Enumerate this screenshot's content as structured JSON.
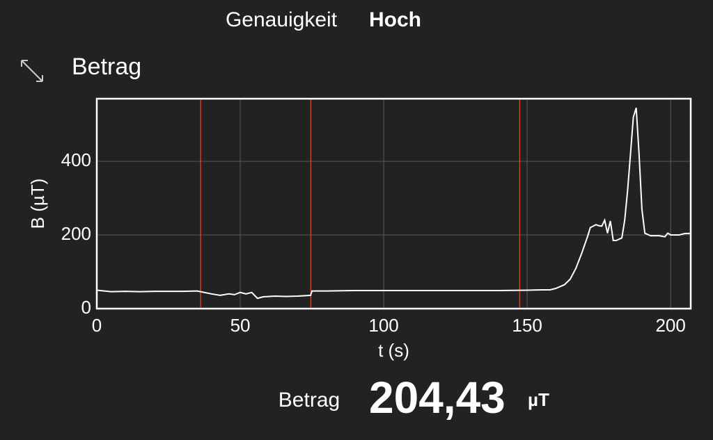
{
  "header": {
    "accuracy_label": "Genauigkeit",
    "accuracy_value": "Hoch"
  },
  "graph_title": "Betrag",
  "chart_data": {
    "type": "line",
    "xlabel": "t (s)",
    "ylabel": "B (µT)",
    "xlim": [
      0,
      207
    ],
    "ylim": [
      0,
      570
    ],
    "xticks": [
      0,
      50,
      100,
      150,
      200
    ],
    "yticks": [
      0,
      200,
      400
    ],
    "grid": true,
    "markers": [
      36.2,
      74.6,
      147.4
    ],
    "marker_color": "#c0442c",
    "series": [
      {
        "color": "#ffffff",
        "x": [
          0,
          5,
          10,
          15,
          20,
          25,
          30,
          35,
          40,
          43,
          46,
          48,
          50,
          52,
          54,
          56,
          58,
          62,
          66,
          70,
          74.5,
          75,
          80,
          90,
          100,
          110,
          120,
          130,
          140,
          150,
          155,
          158,
          160,
          163,
          165,
          167,
          169,
          171,
          172,
          174,
          175,
          176,
          177,
          178,
          179,
          180,
          181,
          183,
          184,
          185,
          186,
          187,
          188,
          189,
          190,
          191,
          193,
          196,
          198,
          199,
          200,
          203,
          205,
          207
        ],
        "values": [
          50,
          46,
          47,
          46,
          47,
          47,
          47,
          48,
          40,
          36,
          40,
          38,
          44,
          40,
          44,
          28,
          32,
          34,
          33,
          34,
          36,
          48,
          48,
          49,
          49,
          49,
          49,
          49,
          49,
          50,
          51,
          51,
          55,
          65,
          80,
          110,
          150,
          195,
          220,
          228,
          225,
          224,
          240,
          205,
          238,
          185,
          185,
          192,
          240,
          320,
          420,
          520,
          545,
          420,
          270,
          205,
          198,
          198,
          195,
          205,
          200,
          200,
          204,
          204
        ]
      }
    ]
  },
  "readout": {
    "label": "Betrag",
    "value": "204,43",
    "unit": "µT"
  }
}
